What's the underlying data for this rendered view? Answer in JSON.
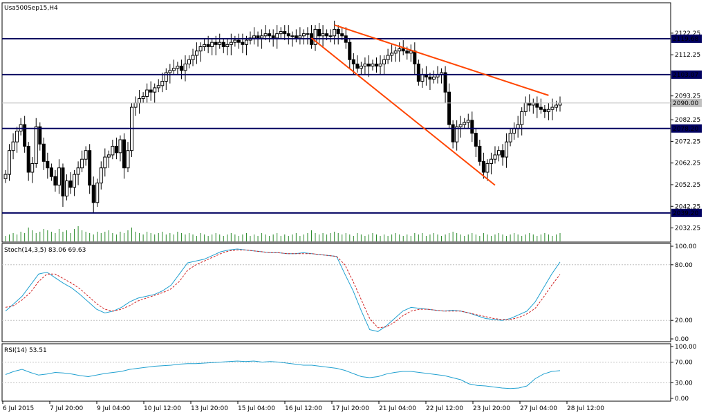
{
  "chart_data": [
    {
      "type": "candlestick",
      "title": "Usa500Sep15,H4",
      "price_axis_ticks": [
        "2122.25",
        "2112.25",
        "2093.25",
        "2082.25",
        "2072.25",
        "2062.25",
        "2052.25",
        "2042.25",
        "2032.25"
      ],
      "ylim": [
        2027,
        2135
      ],
      "horizontal_levels": [
        {
          "value": 2119.68,
          "label": "2119.68"
        },
        {
          "value": 2103.07,
          "label": "2103.07"
        },
        {
          "value": 2078.2,
          "label": "2078.20"
        },
        {
          "value": 2039.2,
          "label": "2039.20"
        }
      ],
      "current_price": {
        "value": 2090.0,
        "label": "2090.00"
      },
      "trendlines": [
        {
          "name": "upper",
          "from": {
            "bar": 86,
            "price": 2126.0
          },
          "to": {
            "bar": 142,
            "price": 2093.5
          }
        },
        {
          "name": "lower",
          "from": {
            "bar": 80,
            "price": 2120.0
          },
          "to": {
            "bar": 128,
            "price": 2052.0
          }
        }
      ],
      "x_tick_labels": [
        "6 Jul 2015",
        "7 Jul 20:00",
        "9 Jul 04:00",
        "10 Jul 12:00",
        "13 Jul 20:00",
        "15 Jul 04:00",
        "16 Jul 12:00",
        "17 Jul 20:00",
        "21 Jul 04:00",
        "22 Jul 12:00",
        "23 Jul 20:00",
        "27 Jul 04:00",
        "28 Jul 12:00"
      ],
      "closes": [
        2057,
        2068,
        2072,
        2077,
        2080,
        2070,
        2058,
        2062,
        2079,
        2071,
        2063,
        2060,
        2056,
        2052,
        2060,
        2047,
        2054,
        2051,
        2057,
        2060,
        2064,
        2068,
        2052,
        2044,
        2053,
        2060,
        2065,
        2066,
        2070,
        2067,
        2073,
        2060,
        2068,
        2088,
        2090,
        2092,
        2093,
        2096,
        2095,
        2097,
        2098,
        2100,
        2104,
        2105,
        2106,
        2107,
        2105,
        2108,
        2110,
        2112,
        2114,
        2116,
        2117,
        2116,
        2118,
        2117,
        2118,
        2116,
        2117,
        2118,
        2119,
        2118,
        2117,
        2119,
        2120,
        2121,
        2120,
        2121,
        2122,
        2121,
        2120,
        2122,
        2123,
        2122,
        2121,
        2121,
        2120,
        2121,
        2122,
        2122,
        2117,
        2124,
        2121,
        2122,
        2121,
        2121,
        2124,
        2122,
        2121,
        2118,
        2110,
        2108,
        2106,
        2107,
        2108,
        2107,
        2108,
        2107,
        2108,
        2110,
        2112,
        2113,
        2114,
        2115,
        2114,
        2113,
        2114,
        2108,
        2100,
        2103,
        2102,
        2101,
        2102,
        2103,
        2104,
        2095,
        2080,
        2072,
        2079,
        2080,
        2081,
        2082,
        2076,
        2070,
        2063,
        2058,
        2062,
        2064,
        2066,
        2068,
        2065,
        2072,
        2076,
        2078,
        2080,
        2086,
        2090,
        2089,
        2090,
        2088,
        2087,
        2086,
        2087,
        2088,
        2089,
        2090
      ],
      "volumes": [
        4,
        5,
        6,
        5,
        7,
        6,
        10,
        8,
        6,
        7,
        9,
        8,
        7,
        6,
        9,
        7,
        8,
        6,
        9,
        11,
        8,
        7,
        6,
        5,
        7,
        6,
        7,
        8,
        6,
        5,
        7,
        6,
        8,
        10,
        7,
        6,
        5,
        7,
        6,
        5,
        6,
        7,
        5,
        6,
        5,
        7,
        6,
        5,
        6,
        5,
        4,
        6,
        5,
        4,
        5,
        6,
        5,
        4,
        5,
        6,
        5,
        4,
        5,
        6,
        4,
        5,
        4,
        6,
        5,
        4,
        5,
        6,
        4,
        5,
        4,
        5,
        6,
        4,
        5,
        6,
        8,
        6,
        5,
        6,
        5,
        6,
        7,
        6,
        5,
        6,
        5,
        4,
        6,
        5,
        4,
        5,
        6,
        5,
        4,
        5,
        4,
        5,
        6,
        5,
        4,
        5,
        4,
        6,
        5,
        6,
        4,
        5,
        6,
        5,
        4,
        5,
        6,
        7,
        6,
        5,
        4,
        5,
        6,
        5,
        4,
        6,
        5,
        4,
        5,
        6,
        5,
        4,
        5,
        6,
        5,
        4,
        5,
        6,
        5,
        4,
        5,
        6,
        5,
        4,
        5,
        6
      ],
      "label_prefix_volumes": ""
    },
    {
      "type": "line",
      "title": "Stoch(14,3,5) 83.06 69.63",
      "ylim": [
        0,
        100
      ],
      "y_ticks": [
        "100.00",
        "80.00",
        "20.00",
        "0.00"
      ],
      "series": [
        {
          "name": "main",
          "color": "#20a0d0",
          "values": [
            30,
            38,
            46,
            58,
            70,
            72,
            66,
            60,
            55,
            48,
            40,
            32,
            28,
            30,
            34,
            40,
            44,
            46,
            48,
            52,
            58,
            70,
            82,
            84,
            86,
            90,
            94,
            96,
            97,
            96,
            95,
            94,
            93,
            93,
            92,
            92,
            93,
            92,
            91,
            90,
            89,
            70,
            52,
            30,
            10,
            8,
            14,
            22,
            30,
            34,
            33,
            32,
            31,
            30,
            31,
            30,
            28,
            25,
            22,
            21,
            20,
            22,
            26,
            30,
            40,
            55,
            70,
            83
          ]
        },
        {
          "name": "signal",
          "color": "#d02020",
          "values": [
            34,
            36,
            42,
            50,
            62,
            70,
            70,
            65,
            60,
            54,
            46,
            38,
            32,
            30,
            32,
            36,
            41,
            44,
            47,
            50,
            54,
            62,
            74,
            80,
            84,
            88,
            92,
            95,
            96,
            96,
            95,
            94,
            93,
            93,
            92,
            92,
            92,
            92,
            91,
            90,
            89,
            80,
            62,
            42,
            22,
            12,
            13,
            18,
            25,
            30,
            32,
            32,
            31,
            30,
            30,
            30,
            28,
            26,
            24,
            22,
            21,
            21,
            23,
            27,
            33,
            45,
            58,
            69.63
          ]
        }
      ]
    },
    {
      "type": "line",
      "title": "RSI(14) 53.51",
      "ylim": [
        0,
        100
      ],
      "y_ticks": [
        "100.00",
        "70.00",
        "30.00",
        "0.00"
      ],
      "series": [
        {
          "name": "RSI",
          "color": "#20a0d0",
          "values": [
            46,
            52,
            56,
            50,
            45,
            47,
            50,
            49,
            47,
            44,
            42,
            45,
            48,
            50,
            52,
            56,
            58,
            60,
            62,
            63,
            64,
            66,
            67,
            67,
            68,
            69,
            70,
            71,
            72,
            71,
            72,
            70,
            71,
            70,
            68,
            66,
            64,
            64,
            62,
            60,
            58,
            54,
            48,
            42,
            40,
            42,
            47,
            50,
            52,
            52,
            50,
            48,
            46,
            44,
            40,
            36,
            28,
            25,
            24,
            22,
            20,
            19,
            20,
            24,
            38,
            47,
            52,
            53.51
          ]
        }
      ]
    }
  ]
}
